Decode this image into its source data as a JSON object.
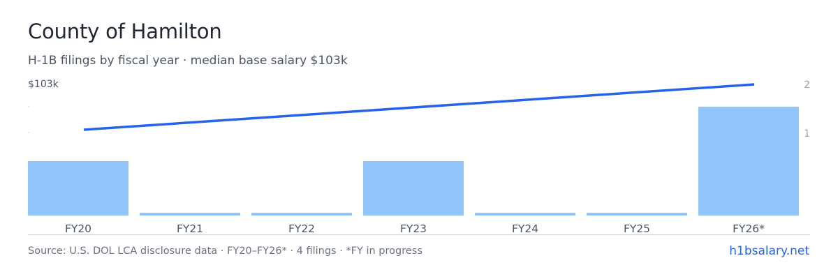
{
  "header": {
    "title": "County of Hamilton",
    "subtitle": "H-1B filings by fiscal year · median base salary $103k"
  },
  "footer": {
    "source": "Source: U.S. DOL LCA disclosure data · FY20–FY26* · 4 filings · *FY in progress",
    "brand": "h1bsalary.net"
  },
  "colors": {
    "bar": "#93c5fd",
    "line": "#2563eb",
    "axis_text": "#9ca3af",
    "category_text": "#4b5563",
    "baseline": "#d1d5db"
  },
  "chart_data": {
    "type": "bar",
    "categories": [
      "FY20",
      "FY21",
      "FY22",
      "FY23",
      "FY24",
      "FY25",
      "FY26*"
    ],
    "series": [
      {
        "type": "bar",
        "axis": "right",
        "values": [
          1,
          0,
          0,
          1,
          0,
          0,
          2
        ]
      },
      {
        "type": "line",
        "axis": "left",
        "x": [
          "FY20",
          "FY26*"
        ],
        "values": [
          103,
          103
        ]
      }
    ],
    "left_axis": {
      "tick_labels": [
        "$103k"
      ]
    },
    "right_axis": {
      "ticks": [
        1,
        2
      ],
      "range": [
        0,
        2
      ]
    }
  }
}
